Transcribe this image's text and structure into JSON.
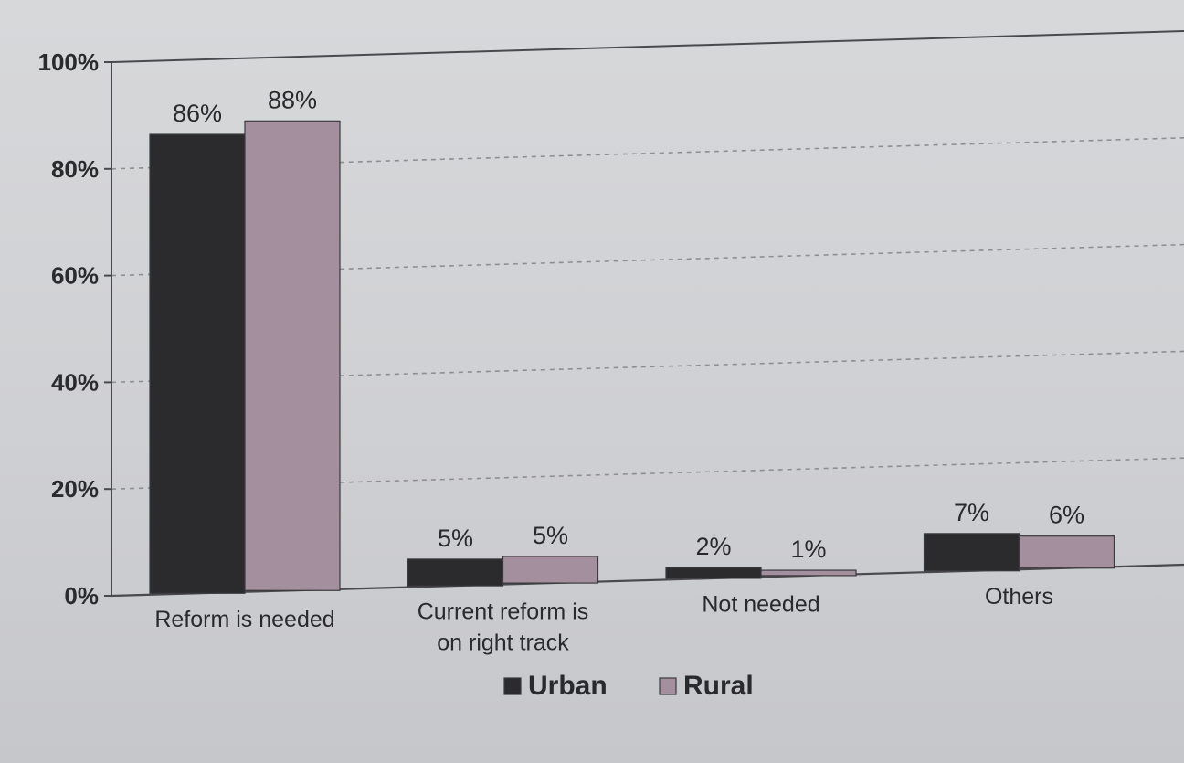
{
  "chart_data": {
    "type": "bar",
    "categories": [
      "Reform is needed",
      "Current reform is on right track",
      "Not needed",
      "Others"
    ],
    "category_lines": [
      [
        "Reform is needed"
      ],
      [
        "Current reform is",
        "on right track"
      ],
      [
        "Not needed"
      ],
      [
        "Others"
      ]
    ],
    "series": [
      {
        "name": "Urban",
        "values": [
          86,
          5,
          2,
          7
        ],
        "labels": [
          "86%",
          "5%",
          "2%",
          "7%"
        ],
        "color": "#2b2b2d"
      },
      {
        "name": "Rural",
        "values": [
          88,
          5,
          1,
          6
        ],
        "labels": [
          "88%",
          "5%",
          "1%",
          "6%"
        ],
        "color": "#a48f9e"
      }
    ],
    "ylim": [
      0,
      100
    ],
    "yticks": [
      "0%",
      "20%",
      "40%",
      "60%",
      "80%",
      "100%"
    ],
    "ytick_values": [
      0,
      20,
      40,
      60,
      80,
      100
    ],
    "grid": true,
    "legend_position": "bottom",
    "title": "",
    "xlabel": "",
    "ylabel": ""
  }
}
